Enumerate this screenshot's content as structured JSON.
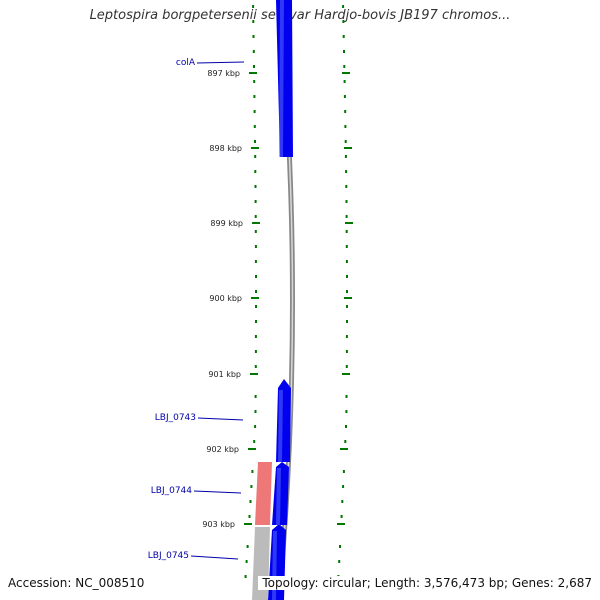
{
  "title": "Leptospira borgpetersenii serovar Hardjo-bovis JB197 chromos...",
  "accession": "Accession: NC_008510",
  "summary": "Topology: circular; Length: 3,576,473 bp; Genes: 2,687",
  "scale": {
    "unit": "kbp",
    "ticks": [
      {
        "label": "897 kbp"
      },
      {
        "label": "898 kbp"
      },
      {
        "label": "899 kbp"
      },
      {
        "label": "900 kbp"
      },
      {
        "label": "901 kbp"
      },
      {
        "label": "902 kbp"
      },
      {
        "label": "903 kbp"
      }
    ]
  },
  "genes": [
    {
      "label": "colA"
    },
    {
      "label": "LBJ_0743"
    },
    {
      "label": "LBJ_0744"
    },
    {
      "label": "LBJ_0745"
    }
  ],
  "colors": {
    "cds": "#0000ee",
    "feature_pink": "#ee7777",
    "feature_grey": "#bbbbbb",
    "backbone": "#888888",
    "tick": "#007700",
    "gene_label": "#0000aa",
    "kbp_label": "#222222"
  }
}
